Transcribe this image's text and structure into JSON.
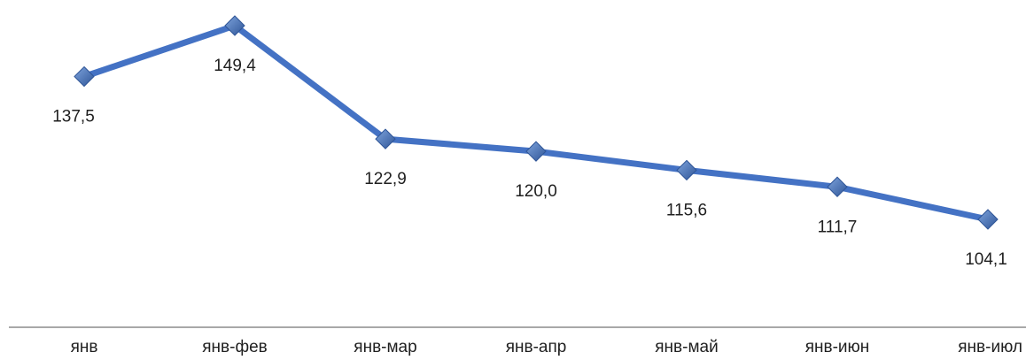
{
  "chart_data": {
    "type": "line",
    "categories": [
      "янв",
      "янв-фев",
      "янв-мар",
      "янв-апр",
      "янв-май",
      "янв-июн",
      "янв-июл"
    ],
    "series": [
      {
        "values": [
          137.5,
          149.4,
          122.9,
          120.0,
          115.6,
          111.7,
          104.1
        ],
        "value_labels": [
          "137,5",
          "149,4",
          "122,9",
          "120,0",
          "115,6",
          "111,7",
          "104,1"
        ],
        "label_positions": [
          "below",
          "below",
          "below",
          "below",
          "below",
          "below",
          "below"
        ],
        "color": "#4472c4",
        "marker": "diamond"
      }
    ],
    "title": "",
    "xlabel": "",
    "ylabel": "",
    "y_axis_visible": false,
    "grid": false,
    "legend": "none"
  },
  "colors": {
    "line": "#4472c4",
    "marker_light": "#7ea4dd",
    "marker_dark": "#2f5597",
    "axis": "#8c8c8c"
  }
}
